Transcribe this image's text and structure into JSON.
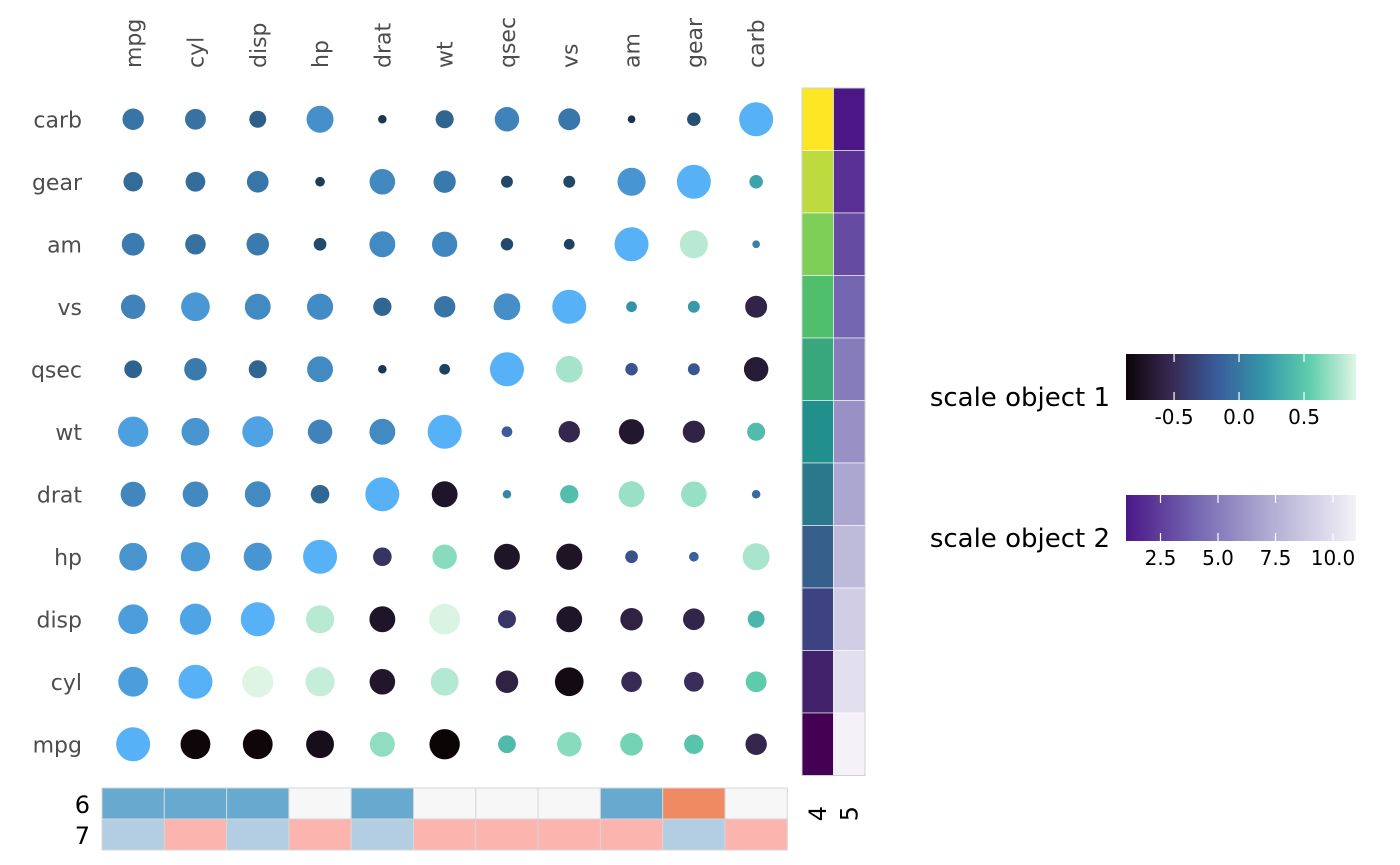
{
  "chart_data": {
    "type": "heatmap",
    "variables": [
      "mpg",
      "cyl",
      "disp",
      "hp",
      "drat",
      "wt",
      "qsec",
      "vs",
      "am",
      "gear",
      "carb"
    ],
    "correlation_matrix": [
      [
        1.0,
        -0.85,
        -0.85,
        -0.78,
        0.68,
        -0.87,
        0.42,
        0.66,
        0.6,
        0.48,
        -0.55
      ],
      [
        -0.85,
        1.0,
        0.9,
        0.83,
        -0.7,
        0.78,
        -0.59,
        -0.81,
        -0.52,
        -0.49,
        0.53
      ],
      [
        -0.85,
        0.9,
        1.0,
        0.79,
        -0.71,
        0.89,
        -0.43,
        -0.71,
        -0.59,
        -0.56,
        0.39
      ],
      [
        -0.78,
        0.83,
        0.79,
        1.0,
        -0.45,
        0.66,
        -0.71,
        -0.72,
        -0.24,
        -0.13,
        0.75
      ],
      [
        0.68,
        -0.7,
        -0.71,
        -0.45,
        1.0,
        -0.71,
        0.09,
        0.44,
        0.71,
        0.7,
        -0.09
      ],
      [
        -0.87,
        0.78,
        0.89,
        0.66,
        -0.71,
        1.0,
        -0.17,
        -0.55,
        -0.69,
        -0.58,
        0.43
      ],
      [
        0.42,
        -0.59,
        -0.43,
        -0.71,
        0.09,
        -0.17,
        1.0,
        0.74,
        -0.23,
        -0.21,
        -0.66
      ],
      [
        0.66,
        -0.81,
        -0.71,
        -0.72,
        0.44,
        -0.55,
        0.74,
        1.0,
        0.17,
        0.21,
        -0.57
      ],
      [
        0.6,
        -0.52,
        -0.59,
        -0.24,
        0.71,
        -0.69,
        -0.23,
        0.17,
        1.0,
        0.79,
        0.06
      ],
      [
        0.48,
        -0.49,
        -0.56,
        -0.13,
        0.7,
        -0.58,
        -0.21,
        0.21,
        0.79,
        1.0,
        0.27
      ],
      [
        -0.55,
        0.53,
        0.39,
        0.75,
        -0.09,
        0.43,
        -0.66,
        -0.57,
        0.06,
        0.27,
        1.0
      ]
    ],
    "row_order_top_to_bottom": [
      "carb",
      "gear",
      "am",
      "vs",
      "qsec",
      "wt",
      "drat",
      "hp",
      "disp",
      "cyl",
      "mpg"
    ],
    "column_order": [
      "mpg",
      "cyl",
      "disp",
      "hp",
      "drat",
      "wt",
      "qsec",
      "vs",
      "am",
      "gear",
      "carb"
    ],
    "circle_color": "#56B1F7",
    "right_annotation": {
      "labels": [
        "4",
        "5"
      ],
      "values_top_to_bottom": [
        [
          11,
          1
        ],
        [
          10,
          2
        ],
        [
          9,
          3
        ],
        [
          8,
          4
        ],
        [
          7,
          5
        ],
        [
          6,
          6
        ],
        [
          5,
          7
        ],
        [
          4,
          8
        ],
        [
          3,
          9
        ],
        [
          2,
          10
        ],
        [
          1,
          11
        ]
      ]
    },
    "bottom_annotation": {
      "labels": [
        "6",
        "7"
      ],
      "rows": [
        [
          "#67A9CF",
          "#67A9CF",
          "#67A9CF",
          "#F7F7F7",
          "#67A9CF",
          "#F7F7F7",
          "#F7F7F7",
          "#F7F7F7",
          "#67A9CF",
          "#EF8A62",
          "#F7F7F7"
        ],
        [
          "#B3CDE3",
          "#FBB4AE",
          "#B3CDE3",
          "#FBB4AE",
          "#B3CDE3",
          "#FBB4AE",
          "#FBB4AE",
          "#FBB4AE",
          "#FBB4AE",
          "#B3CDE3",
          "#FBB4AE"
        ]
      ]
    },
    "legends": [
      {
        "title": "scale object 1",
        "ticks": [
          "-0.5",
          "0.0",
          "0.5"
        ],
        "tick_values": [
          -0.5,
          0.0,
          0.5
        ],
        "range": [
          -0.87,
          0.9
        ],
        "colormap": "mako"
      },
      {
        "title": "scale object 2",
        "ticks": [
          "2.5",
          "5.0",
          "7.5",
          "10.0"
        ],
        "tick_values": [
          2.5,
          5.0,
          7.5,
          10.0
        ],
        "range": [
          1,
          11
        ],
        "colormap": "purples"
      }
    ]
  }
}
